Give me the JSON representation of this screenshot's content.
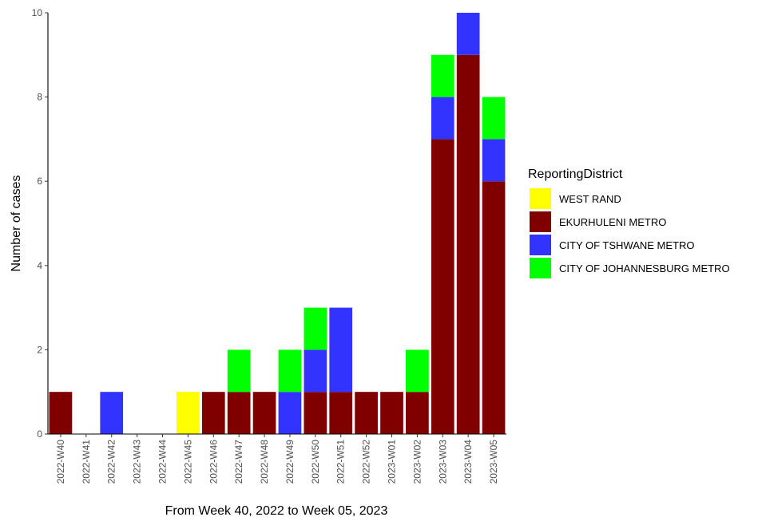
{
  "chart_data": {
    "type": "bar",
    "stacked": true,
    "categories": [
      "2022-W40",
      "2022-W41",
      "2022-W42",
      "2022-W43",
      "2022-W44",
      "2022-W45",
      "2022-W46",
      "2022-W47",
      "2022-W48",
      "2022-W49",
      "2022-W50",
      "2022-W51",
      "2022-W52",
      "2023-W01",
      "2023-W02",
      "2023-W03",
      "2023-W04",
      "2023-W05"
    ],
    "series": [
      {
        "name": "EKURHULENI METRO",
        "color": "#800000",
        "values": [
          1,
          0,
          0,
          0,
          0,
          0,
          1,
          1,
          1,
          0,
          1,
          1,
          1,
          1,
          1,
          7,
          9,
          6
        ]
      },
      {
        "name": "WEST RAND",
        "color": "#ffff00",
        "values": [
          0,
          0,
          0,
          0,
          0,
          1,
          0,
          0,
          0,
          0,
          0,
          0,
          0,
          0,
          0,
          0,
          0,
          0
        ]
      },
      {
        "name": "CITY OF TSHWANE METRO",
        "color": "#3333ff",
        "values": [
          0,
          0,
          1,
          0,
          0,
          0,
          0,
          0,
          0,
          1,
          1,
          2,
          0,
          0,
          0,
          1,
          1,
          1
        ]
      },
      {
        "name": "CITY OF JOHANNESBURG METRO",
        "color": "#00ff00",
        "values": [
          0,
          0,
          0,
          0,
          0,
          0,
          0,
          1,
          0,
          1,
          1,
          0,
          0,
          0,
          1,
          1,
          0,
          1
        ]
      }
    ],
    "xlabel": "From Week 40, 2022 to Week 05, 2023",
    "ylabel": "Number of cases",
    "ylim": [
      0,
      10
    ],
    "yticks": [
      0,
      2,
      4,
      6,
      8,
      10
    ],
    "legend": {
      "title": "ReportingDistrict",
      "position": "right",
      "entries": [
        {
          "label": "WEST RAND",
          "color": "#ffff00"
        },
        {
          "label": "EKURHULENI METRO",
          "color": "#800000"
        },
        {
          "label": "CITY OF TSHWANE METRO",
          "color": "#3333ff"
        },
        {
          "label": "CITY OF JOHANNESBURG METRO",
          "color": "#00ff00"
        }
      ]
    },
    "grid": false
  }
}
